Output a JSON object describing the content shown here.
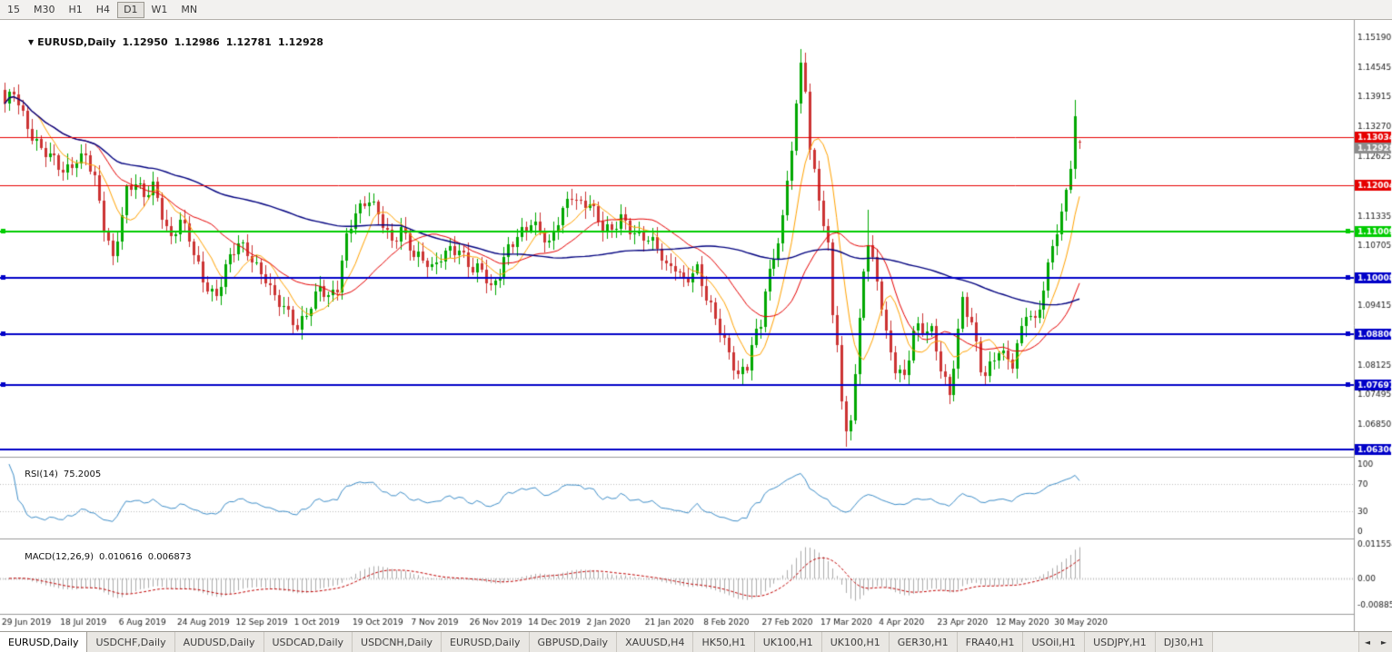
{
  "toolbar": {
    "timeframes": [
      "15",
      "M30",
      "H1",
      "H4",
      "D1",
      "W1",
      "MN"
    ],
    "active": "D1"
  },
  "chart": {
    "title": {
      "collapse_icon": "▼",
      "symbol": "EURUSD,Daily",
      "open": "1.12950",
      "high": "1.12986",
      "low": "1.12781",
      "close": "1.12928"
    },
    "y_ticks": [
      "1.15190",
      "1.14545",
      "1.13915",
      "1.13270",
      "1.12625",
      "1.11335",
      "1.10705",
      "1.09415",
      "1.08125",
      "1.07495",
      "1.06850"
    ],
    "levels": [
      {
        "price": 1.13034,
        "label": "1.13034",
        "color": "#E60000",
        "width": 1,
        "handles": false
      },
      {
        "price": 1.12004,
        "label": "1.12004",
        "color": "#E60000",
        "width": 1,
        "handles": false
      },
      {
        "price": 1.11009,
        "label": "1.11009",
        "color": "#00CC00",
        "width": 2,
        "handles": true
      },
      {
        "price": 1.10008,
        "label": "1.10008",
        "color": "#0000C8",
        "width": 2,
        "handles": true
      },
      {
        "price": 1.088,
        "label": "1.08800",
        "color": "#0000C8",
        "width": 2,
        "handles": true
      },
      {
        "price": 1.07697,
        "label": "1.07697",
        "color": "#0000C8",
        "width": 2,
        "handles": true
      },
      {
        "price": 1.06306,
        "label": "1.06306",
        "color": "#0000C8",
        "width": 2,
        "handles": false
      }
    ],
    "current_price": {
      "value": 1.12928,
      "label": "1.12928",
      "badge_color": "#8C8C8C"
    },
    "date_labels": [
      {
        "i": 0,
        "text": "29 Jun 2019"
      },
      {
        "i": 13,
        "text": "18 Jul 2019"
      },
      {
        "i": 26,
        "text": "6 Aug 2019"
      },
      {
        "i": 39,
        "text": "24 Aug 2019"
      },
      {
        "i": 52,
        "text": "12 Sep 2019"
      },
      {
        "i": 65,
        "text": "1 Oct 2019"
      },
      {
        "i": 78,
        "text": "19 Oct 2019"
      },
      {
        "i": 91,
        "text": "7 Nov 2019"
      },
      {
        "i": 104,
        "text": "26 Nov 2019"
      },
      {
        "i": 117,
        "text": "14 Dec 2019"
      },
      {
        "i": 130,
        "text": "2 Jan 2020"
      },
      {
        "i": 143,
        "text": "21 Jan 2020"
      },
      {
        "i": 156,
        "text": "8 Feb 2020"
      },
      {
        "i": 169,
        "text": "27 Feb 2020"
      },
      {
        "i": 182,
        "text": "17 Mar 2020"
      },
      {
        "i": 195,
        "text": "4 Apr 2020"
      },
      {
        "i": 208,
        "text": "23 Apr 2020"
      },
      {
        "i": 221,
        "text": "12 May 2020"
      },
      {
        "i": 234,
        "text": "30 May 2020"
      }
    ],
    "colors": {
      "up": "#00A800",
      "down": "#CC3333",
      "axis_text": "#1a1a1a",
      "separator": "#9a9a9a"
    }
  },
  "rsi": {
    "name": "RSI(14)",
    "value": "75.2005",
    "color": "#3E8EC9",
    "axis_labels": [
      "100",
      "70",
      "30",
      "0"
    ],
    "guides": [
      70,
      30
    ],
    "range": [
      -10,
      111
    ]
  },
  "macd": {
    "name": "MACD(12,26,9)",
    "macd_value": "0.010616",
    "signal_value": "0.006873",
    "histogram_color": "#ABABAB",
    "signal_color": "#C00000",
    "axis_labels": [
      {
        "value": 0.0115544,
        "text": "0.0115544"
      },
      {
        "value": 0,
        "text": "0.00"
      },
      {
        "value": -0.0088585,
        "text": "-0.0088585"
      }
    ],
    "range": [
      -0.0118,
      0.0131
    ]
  },
  "chart_data": {
    "type": "candlestick",
    "symbol": "EURUSD",
    "timeframe": "Daily",
    "visible_bar_ohlc": {
      "open": 1.1295,
      "high": 1.12986,
      "low": 1.12781,
      "close": 1.12928
    },
    "bar_count": 240,
    "x0": 5,
    "x_step": 4.95,
    "price_range": [
      1.0615,
      1.1545
    ],
    "waypoints": [
      [
        0,
        1.137
      ],
      [
        2,
        1.1398
      ],
      [
        5,
        1.133
      ],
      [
        8,
        1.128
      ],
      [
        11,
        1.125
      ],
      [
        13,
        1.1225
      ],
      [
        16,
        1.126
      ],
      [
        18,
        1.127
      ],
      [
        20,
        1.121
      ],
      [
        22,
        1.1105
      ],
      [
        24,
        1.104
      ],
      [
        27,
        1.1195
      ],
      [
        29,
        1.121
      ],
      [
        31,
        1.117
      ],
      [
        33,
        1.1195
      ],
      [
        35,
        1.114
      ],
      [
        37,
        1.109
      ],
      [
        39,
        1.113
      ],
      [
        41,
        1.108
      ],
      [
        44,
        1.099
      ],
      [
        47,
        1.0965
      ],
      [
        49,
        1.103
      ],
      [
        52,
        1.107
      ],
      [
        55,
        1.104
      ],
      [
        58,
        1.1005
      ],
      [
        60,
        1.096
      ],
      [
        62,
        1.093
      ],
      [
        65,
        1.089
      ],
      [
        67,
        1.093
      ],
      [
        70,
        1.0985
      ],
      [
        72,
        1.095
      ],
      [
        74,
        1.0975
      ],
      [
        76,
        1.109
      ],
      [
        78,
        1.115
      ],
      [
        81,
        1.117
      ],
      [
        83,
        1.113
      ],
      [
        86,
        1.1075
      ],
      [
        88,
        1.1115
      ],
      [
        91,
        1.105
      ],
      [
        93,
        1.1035
      ],
      [
        95,
        1.1015
      ],
      [
        97,
        1.105
      ],
      [
        99,
        1.107
      ],
      [
        101,
        1.106
      ],
      [
        104,
        1.101
      ],
      [
        106,
        1.102
      ],
      [
        108,
        1.098
      ],
      [
        110,
        1.102
      ],
      [
        112,
        1.1065
      ],
      [
        114,
        1.108
      ],
      [
        117,
        1.112
      ],
      [
        119,
        1.111
      ],
      [
        121,
        1.1075
      ],
      [
        123,
        1.112
      ],
      [
        126,
        1.1175
      ],
      [
        128,
        1.116
      ],
      [
        130,
        1.117
      ],
      [
        133,
        1.1105
      ],
      [
        135,
        1.1095
      ],
      [
        137,
        1.113
      ],
      [
        139,
        1.111
      ],
      [
        141,
        1.1095
      ],
      [
        143,
        1.1085
      ],
      [
        145,
        1.106
      ],
      [
        147,
        1.102
      ],
      [
        149,
        1.103
      ],
      [
        151,
        1.1
      ],
      [
        154,
        1.1015
      ],
      [
        156,
        1.095
      ],
      [
        158,
        1.0915
      ],
      [
        160,
        1.087
      ],
      [
        163,
        1.079
      ],
      [
        165,
        1.0805
      ],
      [
        166,
        1.085
      ],
      [
        168,
        1.09
      ],
      [
        169,
        1.098
      ],
      [
        171,
        1.105
      ],
      [
        173,
        1.113
      ],
      [
        175,
        1.128
      ],
      [
        177,
        1.145
      ],
      [
        178,
        1.141
      ],
      [
        179,
        1.128
      ],
      [
        181,
        1.118
      ],
      [
        183,
        1.107
      ],
      [
        184,
        1.092
      ],
      [
        185,
        1.086
      ],
      [
        186,
        1.072
      ],
      [
        187,
        1.066
      ],
      [
        188,
        1.07
      ],
      [
        189,
        1.079
      ],
      [
        191,
        1.103
      ],
      [
        192,
        1.108
      ],
      [
        194,
        1.1
      ],
      [
        196,
        1.087
      ],
      [
        198,
        1.08
      ],
      [
        200,
        1.079
      ],
      [
        202,
        1.089
      ],
      [
        203,
        1.09
      ],
      [
        205,
        1.0885
      ],
      [
        206,
        1.088
      ],
      [
        208,
        1.08
      ],
      [
        210,
        1.075
      ],
      [
        213,
        1.096
      ],
      [
        215,
        1.09
      ],
      [
        217,
        1.08
      ],
      [
        218,
        1.0785
      ],
      [
        221,
        1.085
      ],
      [
        224,
        1.082
      ],
      [
        227,
        1.092
      ],
      [
        229,
        1.09
      ],
      [
        231,
        1.098
      ],
      [
        233,
        1.108
      ],
      [
        235,
        1.1135
      ],
      [
        237,
        1.124
      ],
      [
        238,
        1.1335
      ],
      [
        239,
        1.1293
      ]
    ],
    "pin": [
      {
        "i": 2,
        "high": 1.1412
      },
      {
        "i": 65,
        "low": 1.0885
      },
      {
        "i": 177,
        "high": 1.1495
      },
      {
        "i": 187,
        "low": 1.0636
      },
      {
        "i": 192,
        "high": 1.1147
      },
      {
        "i": 238,
        "high": 1.1384
      }
    ],
    "moving_averages": [
      {
        "period": 8,
        "color": "#FFA200",
        "width": 1
      },
      {
        "period": 21,
        "color": "#E60000",
        "width": 1
      },
      {
        "period": 89,
        "color": "#00007F",
        "width": 1.4
      }
    ],
    "indicators": [
      {
        "name": "RSI",
        "period": 14,
        "current": 75.2005
      },
      {
        "name": "MACD",
        "fast": 12,
        "slow": 26,
        "signal": 9,
        "current_macd": 0.010616,
        "current_signal": 0.006873
      }
    ]
  },
  "tabs": {
    "items": [
      "EURUSD,Daily",
      "USDCHF,Daily",
      "AUDUSD,Daily",
      "USDCAD,Daily",
      "USDCNH,Daily",
      "EURUSD,Daily",
      "GBPUSD,Daily",
      "XAUUSD,H4",
      "HK50,H1",
      "UK100,H1",
      "UK100,H1",
      "GER30,H1",
      "FRA40,H1",
      "USOil,H1",
      "USDJPY,H1",
      "DJ30,H1"
    ],
    "active_index": 0,
    "scroll_left_icon": "◄",
    "scroll_right_icon": "►"
  }
}
